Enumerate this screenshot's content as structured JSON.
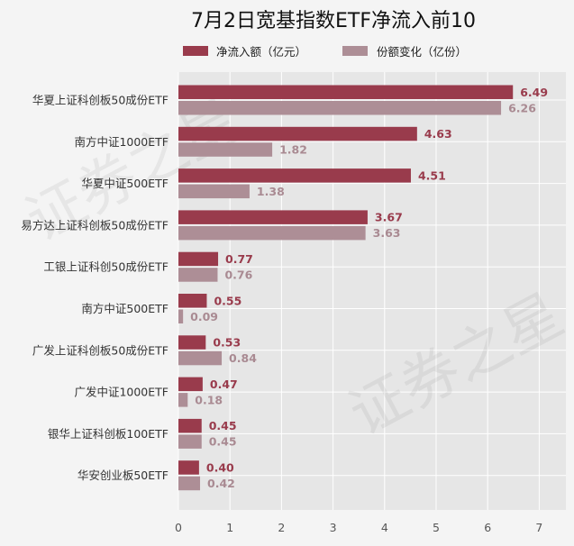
{
  "colors": {
    "net_inflow": "#993b4c",
    "share_change": "#ad8e96",
    "plot_bg": "#e6e6e6",
    "grid": "#ffffff"
  },
  "watermark": "证券之星",
  "chart_data": {
    "type": "bar",
    "orientation": "horizontal",
    "title": "7月2日宽基指数ETF净流入前10",
    "xlim": [
      0,
      7.5
    ],
    "xticks": [
      0,
      1,
      2,
      3,
      4,
      5,
      6,
      7
    ],
    "grid": true,
    "legend_position": "top",
    "categories": [
      "华夏上证科创板50成份ETF",
      "南方中证1000ETF",
      "华夏中证500ETF",
      "易方达上证科创板50成份ETF",
      "工银上证科创50成份ETF",
      "南方中证500ETF",
      "广发上证科创板50成份ETF",
      "广发中证1000ETF",
      "银华上证科创板100ETF",
      "华安创业板50ETF"
    ],
    "series": [
      {
        "name": "净流入额（亿元）",
        "values": [
          6.49,
          4.63,
          4.51,
          3.67,
          0.77,
          0.55,
          0.53,
          0.47,
          0.45,
          0.4
        ]
      },
      {
        "name": "份额变化（亿份）",
        "values": [
          6.26,
          1.82,
          1.38,
          3.63,
          0.76,
          0.09,
          0.84,
          0.18,
          0.45,
          0.42
        ]
      }
    ]
  }
}
